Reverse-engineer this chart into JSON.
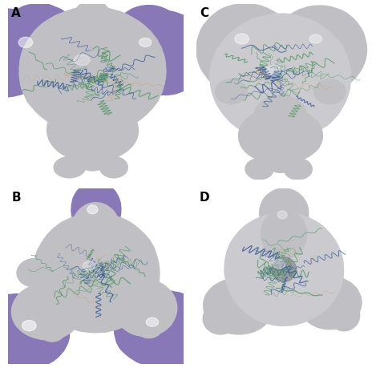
{
  "background_color": "#ffffff",
  "surface_gray": "#c0c0c4",
  "surface_gray2": "#cbcbcf",
  "surface_purple": "#8878b8",
  "surface_purple_light": "#a090cc",
  "protein_green": "#5a9a6a",
  "protein_blue": "#3a5a9a",
  "protein_orange": "#c8a070",
  "highlight_white": "#ffffff",
  "label_fontsize": 11,
  "label_fontweight": "bold",
  "panel_labels": [
    "A",
    "B",
    "C",
    "D"
  ]
}
